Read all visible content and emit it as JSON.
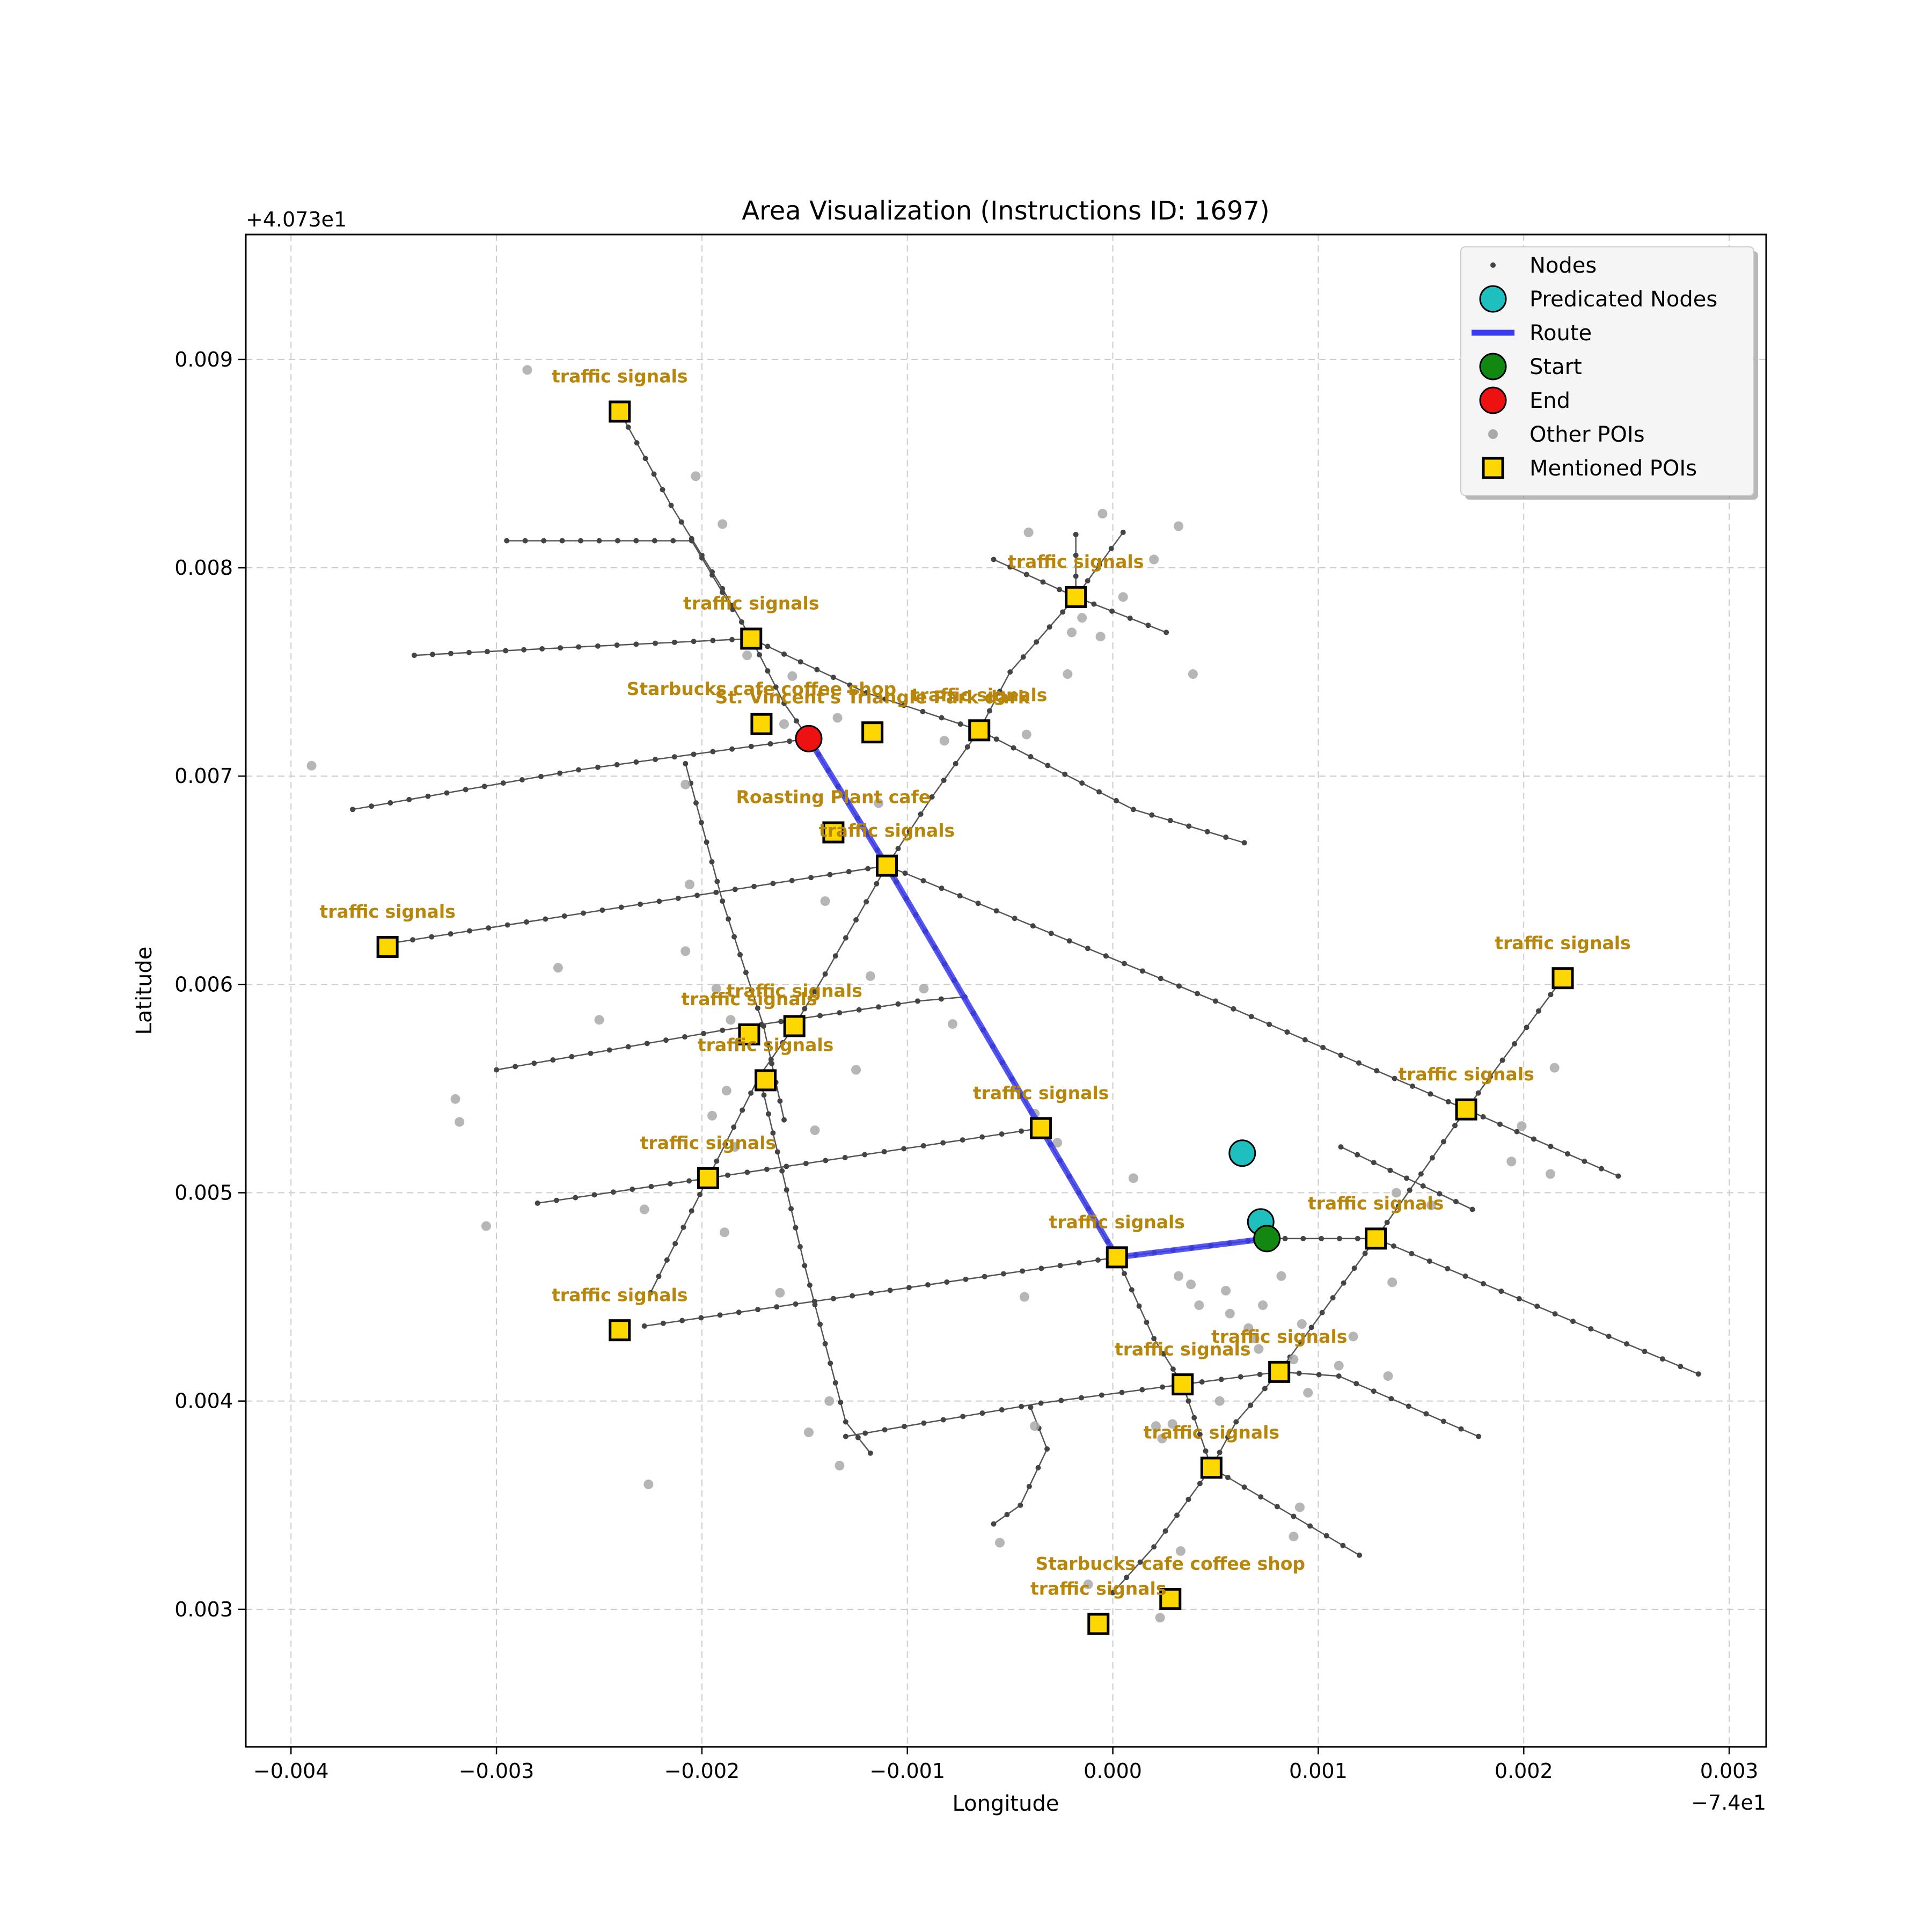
{
  "chart_data": {
    "type": "map",
    "title": "Area Visualization (Instructions ID: 1697)",
    "xlabel": "Longitude",
    "ylabel": "Latitude",
    "x_offset_label": "−7.4e1",
    "y_offset_label": "+4.073e1",
    "xlim": [
      -0.00422,
      0.00318
    ],
    "ylim": [
      0.00234,
      0.0096
    ],
    "x_ticks": [
      {
        "v": -0.004,
        "label": "−0.004"
      },
      {
        "v": -0.003,
        "label": "−0.003"
      },
      {
        "v": -0.002,
        "label": "−0.002"
      },
      {
        "v": -0.001,
        "label": "−0.001"
      },
      {
        "v": 0.0,
        "label": "0.000"
      },
      {
        "v": 0.001,
        "label": "0.001"
      },
      {
        "v": 0.002,
        "label": "0.002"
      },
      {
        "v": 0.003,
        "label": "0.003"
      }
    ],
    "y_ticks": [
      {
        "v": 0.003,
        "label": "0.003"
      },
      {
        "v": 0.004,
        "label": "0.004"
      },
      {
        "v": 0.005,
        "label": "0.005"
      },
      {
        "v": 0.006,
        "label": "0.006"
      },
      {
        "v": 0.007,
        "label": "0.007"
      },
      {
        "v": 0.008,
        "label": "0.008"
      },
      {
        "v": 0.009,
        "label": "0.009"
      }
    ],
    "grid": true,
    "legend": {
      "position": "top-right",
      "entries": [
        {
          "label": "Nodes",
          "kind": "node"
        },
        {
          "label": "Predicated Nodes",
          "kind": "pred"
        },
        {
          "label": "Route",
          "kind": "route"
        },
        {
          "label": "Start",
          "kind": "start"
        },
        {
          "label": "End",
          "kind": "end"
        },
        {
          "label": "Other POIs",
          "kind": "other"
        },
        {
          "label": "Mentioned POIs",
          "kind": "poi"
        }
      ]
    },
    "colors": {
      "route": "#3a3aee",
      "node": "#444444",
      "edge": "#555555",
      "predicated": "#1fbfbf",
      "start": "#118811",
      "end": "#ee1111",
      "other_poi": "#a9a9a9",
      "poi_fill": "#ffd700",
      "poi_label": "#b8860b",
      "grid": "#cccccc"
    },
    "streets": [
      [
        [
          -0.0024,
          0.00875
        ],
        [
          -0.00215,
          0.0083
        ],
        [
          -0.0019,
          0.0079
        ],
        [
          -0.00176,
          0.00766
        ],
        [
          -0.0016,
          0.00735
        ],
        [
          -0.00148,
          0.00718
        ]
      ],
      [
        [
          -0.0034,
          0.00758
        ],
        [
          -0.0026,
          0.00762
        ],
        [
          -0.00176,
          0.00766
        ]
      ],
      [
        [
          -0.00176,
          0.00766
        ],
        [
          -0.0012,
          0.0074
        ],
        [
          -0.00065,
          0.00722
        ],
        [
          0.0001,
          0.00684
        ],
        [
          0.00064,
          0.00668
        ]
      ],
      [
        [
          -0.00295,
          0.00813
        ],
        [
          -0.00205,
          0.00813
        ],
        [
          -0.00185,
          0.0078
        ]
      ],
      [
        [
          -0.0037,
          0.00684
        ],
        [
          -0.0026,
          0.00703
        ],
        [
          -0.00148,
          0.00718
        ]
      ],
      [
        [
          -0.00208,
          0.00706
        ],
        [
          -0.0019,
          0.0064
        ],
        [
          -0.0017,
          0.0058
        ],
        [
          -0.0016,
          0.00535
        ]
      ],
      [
        [
          -0.00148,
          0.00718
        ],
        [
          -0.0011,
          0.00657
        ],
        [
          -0.00035,
          0.00531
        ],
        [
          2e-05,
          0.00469
        ]
      ],
      [
        [
          -0.0035,
          0.0062
        ],
        [
          -0.0011,
          0.00657
        ]
      ],
      [
        [
          -0.0011,
          0.00657
        ],
        [
          0.0005,
          0.00592
        ],
        [
          0.00172,
          0.0054
        ],
        [
          0.00246,
          0.00508
        ]
      ],
      [
        [
          -0.00018,
          0.00816
        ],
        [
          -0.00018,
          0.00786
        ],
        [
          -0.0005,
          0.0075
        ],
        [
          -0.00065,
          0.00722
        ],
        [
          -0.00088,
          0.0069
        ],
        [
          -0.0011,
          0.00657
        ],
        [
          -0.0014,
          0.00605
        ],
        [
          -0.00155,
          0.0058
        ],
        [
          -0.00172,
          0.00556
        ]
      ],
      [
        [
          -0.00058,
          0.00804
        ],
        [
          -0.00018,
          0.00786
        ],
        [
          0.00026,
          0.00769
        ]
      ],
      [
        [
          -0.00018,
          0.00786
        ],
        [
          5e-05,
          0.00817
        ]
      ],
      [
        [
          -0.003,
          0.00559
        ],
        [
          -0.0019,
          0.00578
        ],
        [
          -0.00095,
          0.00592
        ],
        [
          -0.00072,
          0.00594
        ]
      ],
      [
        [
          -0.0028,
          0.00495
        ],
        [
          -0.00197,
          0.00507
        ],
        [
          -0.00035,
          0.00531
        ]
      ],
      [
        [
          -0.00172,
          0.00556
        ],
        [
          -0.00197,
          0.00507
        ],
        [
          -0.00225,
          0.00452
        ]
      ],
      [
        [
          -0.00172,
          0.00556
        ],
        [
          -0.0015,
          0.00465
        ],
        [
          -0.0013,
          0.0039
        ],
        [
          -0.00118,
          0.00375
        ]
      ],
      [
        [
          -0.00228,
          0.00436
        ],
        [
          2e-05,
          0.00469
        ],
        [
          0.00075,
          0.00478
        ],
        [
          0.00128,
          0.00478
        ]
      ],
      [
        [
          2e-05,
          0.00469
        ],
        [
          0.0002,
          0.0043
        ],
        [
          0.00034,
          0.00408
        ],
        [
          0.00048,
          0.00368
        ]
      ],
      [
        [
          -0.0013,
          0.00383
        ],
        [
          -0.00035,
          0.00399
        ],
        [
          0.00034,
          0.00408
        ],
        [
          0.00081,
          0.00414
        ],
        [
          0.0011,
          0.00412
        ],
        [
          0.00178,
          0.00383
        ]
      ],
      [
        [
          0.00128,
          0.00478
        ],
        [
          0.00081,
          0.00414
        ],
        [
          0.0006,
          0.0039
        ],
        [
          0.00048,
          0.00368
        ],
        [
          0.0002,
          0.0033
        ],
        [
          0.0,
          0.00308
        ]
      ],
      [
        [
          0.00048,
          0.00368
        ],
        [
          0.0012,
          0.00326
        ]
      ],
      [
        [
          0.00128,
          0.00478
        ],
        [
          0.00285,
          0.00413
        ]
      ],
      [
        [
          0.00219,
          0.00603
        ],
        [
          0.00172,
          0.0054
        ],
        [
          0.00128,
          0.00478
        ]
      ],
      [
        [
          0.00111,
          0.00522
        ],
        [
          0.00175,
          0.00492
        ]
      ],
      [
        [
          -0.0004,
          0.00397
        ],
        [
          -0.00032,
          0.00377
        ],
        [
          -0.00045,
          0.0035
        ],
        [
          -0.00058,
          0.00341
        ]
      ]
    ],
    "route": [
      [
        -0.00148,
        0.00718
      ],
      [
        -0.0011,
        0.00657
      ],
      [
        -0.00035,
        0.00531
      ],
      [
        2e-05,
        0.00469
      ],
      [
        0.00075,
        0.00478
      ]
    ],
    "predicated_nodes": [
      [
        0.00063,
        0.00519
      ],
      [
        0.00072,
        0.00486
      ]
    ],
    "start": [
      0.00075,
      0.00478
    ],
    "end": [
      -0.00148,
      0.00718
    ],
    "other_pois": [
      [
        -0.0039,
        0.00705
      ],
      [
        -0.00285,
        0.00895
      ],
      [
        -0.00203,
        0.00844
      ],
      [
        -0.0019,
        0.00821
      ],
      [
        -0.00178,
        0.00758
      ],
      [
        -0.00156,
        0.00748
      ],
      [
        -0.0016,
        0.00725
      ],
      [
        -0.00134,
        0.00728
      ],
      [
        -0.00114,
        0.00687
      ],
      [
        -0.00082,
        0.00717
      ],
      [
        -0.00042,
        0.0072
      ],
      [
        -0.00022,
        0.00749
      ],
      [
        -0.0002,
        0.00769
      ],
      [
        -0.00015,
        0.00776
      ],
      [
        -6e-05,
        0.00767
      ],
      [
        5e-05,
        0.00786
      ],
      [
        0.0002,
        0.00804
      ],
      [
        0.00032,
        0.0082
      ],
      [
        0.00039,
        0.00749
      ],
      [
        -0.00041,
        0.00817
      ],
      [
        -5e-05,
        0.00826
      ],
      [
        -0.00208,
        0.00696
      ],
      [
        -0.00206,
        0.00648
      ],
      [
        -0.00208,
        0.00616
      ],
      [
        -0.0027,
        0.00608
      ],
      [
        -0.0025,
        0.00583
      ],
      [
        -0.00193,
        0.00598
      ],
      [
        -0.00186,
        0.00583
      ],
      [
        -0.0014,
        0.0064
      ],
      [
        -0.00118,
        0.00604
      ],
      [
        -0.00092,
        0.00598
      ],
      [
        -0.00125,
        0.00559
      ],
      [
        -0.00188,
        0.00549
      ],
      [
        -0.00195,
        0.00537
      ],
      [
        -0.00145,
        0.0053
      ],
      [
        -0.00038,
        0.00538
      ],
      [
        -0.00027,
        0.00524
      ],
      [
        -0.00078,
        0.00581
      ],
      [
        -0.0032,
        0.00545
      ],
      [
        -0.00318,
        0.00534
      ],
      [
        -0.00305,
        0.00484
      ],
      [
        -0.00228,
        0.00492
      ],
      [
        -0.00189,
        0.00481
      ],
      [
        -0.00184,
        0.00522
      ],
      [
        -0.00162,
        0.00452
      ],
      [
        -0.00138,
        0.004
      ],
      [
        -0.00148,
        0.00385
      ],
      [
        -0.00133,
        0.00369
      ],
      [
        -0.00226,
        0.0036
      ],
      [
        -0.00043,
        0.0045
      ],
      [
        -0.00038,
        0.00388
      ],
      [
        0.0001,
        0.00507
      ],
      [
        0.00032,
        0.0046
      ],
      [
        0.00038,
        0.00456
      ],
      [
        0.00042,
        0.00446
      ],
      [
        0.00055,
        0.00453
      ],
      [
        0.00057,
        0.00442
      ],
      [
        0.00066,
        0.00435
      ],
      [
        0.00069,
        0.0043
      ],
      [
        0.00073,
        0.00446
      ],
      [
        0.00071,
        0.00425
      ],
      [
        0.00082,
        0.0046
      ],
      [
        0.00092,
        0.00437
      ],
      [
        0.0011,
        0.00417
      ],
      [
        0.00117,
        0.00431
      ],
      [
        0.00095,
        0.00404
      ],
      [
        0.00088,
        0.0042
      ],
      [
        0.00134,
        0.00412
      ],
      [
        0.00136,
        0.00457
      ],
      [
        0.00138,
        0.005
      ],
      [
        0.00155,
        0.00494
      ],
      [
        0.00194,
        0.00515
      ],
      [
        0.00199,
        0.00532
      ],
      [
        0.00213,
        0.00509
      ],
      [
        0.00215,
        0.0056
      ],
      [
        0.00021,
        0.00388
      ],
      [
        0.00024,
        0.00382
      ],
      [
        0.00029,
        0.00389
      ],
      [
        0.00091,
        0.00349
      ],
      [
        0.00088,
        0.00335
      ],
      [
        -0.00055,
        0.00332
      ],
      [
        -0.00012,
        0.00312
      ],
      [
        0.00023,
        0.00296
      ],
      [
        0.00033,
        0.00328
      ],
      [
        0.00052,
        0.004
      ]
    ],
    "mentioned_pois": [
      {
        "x": -0.0024,
        "y": 0.00875,
        "label": "traffic signals",
        "dx": 0,
        "dy": 0.00014
      },
      {
        "x": -0.00176,
        "y": 0.00766,
        "label": "traffic signals",
        "dx": 0,
        "dy": 0.00014
      },
      {
        "x": -0.00018,
        "y": 0.00786,
        "label": "traffic signals",
        "dx": 0,
        "dy": 0.00014
      },
      {
        "x": -0.00171,
        "y": 0.00725,
        "label": "Starbucks cafe coffee shop",
        "dx": 0,
        "dy": 0.00014
      },
      {
        "x": -0.00117,
        "y": 0.00721,
        "label": "St. Vincent's Triangle Park dark",
        "dx": 0,
        "dy": 0.00014
      },
      {
        "x": -0.00065,
        "y": 0.00722,
        "label": "traffic signals",
        "dx": 0,
        "dy": 0.00014
      },
      {
        "x": -0.00136,
        "y": 0.00673,
        "label": "Roasting Plant cafe",
        "dx": 0,
        "dy": 0.00014
      },
      {
        "x": -0.0011,
        "y": 0.00657,
        "label": "traffic signals",
        "dx": 0,
        "dy": 0.00014
      },
      {
        "x": -0.00353,
        "y": 0.00618,
        "label": "traffic signals",
        "dx": 0,
        "dy": 0.00014
      },
      {
        "x": 0.00219,
        "y": 0.00603,
        "label": "traffic signals",
        "dx": 0,
        "dy": 0.00014
      },
      {
        "x": -0.00155,
        "y": 0.0058,
        "label": "traffic signals",
        "dx": 0,
        "dy": 0.00014
      },
      {
        "x": -0.00177,
        "y": 0.00576,
        "label": "traffic signals",
        "dx": 0,
        "dy": 0.00014
      },
      {
        "x": -0.00169,
        "y": 0.00554,
        "label": "traffic signals",
        "dx": 0,
        "dy": 0.00014
      },
      {
        "x": 0.00172,
        "y": 0.0054,
        "label": "traffic signals",
        "dx": 0,
        "dy": 0.00014
      },
      {
        "x": -0.00035,
        "y": 0.00531,
        "label": "traffic signals",
        "dx": 0,
        "dy": 0.00014
      },
      {
        "x": -0.00197,
        "y": 0.00507,
        "label": "traffic signals",
        "dx": 0,
        "dy": 0.00014
      },
      {
        "x": 0.00128,
        "y": 0.00478,
        "label": "traffic signals",
        "dx": 0,
        "dy": 0.00014
      },
      {
        "x": 2e-05,
        "y": 0.00469,
        "label": "traffic signals",
        "dx": 0,
        "dy": 0.00014
      },
      {
        "x": -0.0024,
        "y": 0.00434,
        "label": "traffic signals",
        "dx": 0,
        "dy": 0.00014
      },
      {
        "x": 0.00081,
        "y": 0.00414,
        "label": "traffic signals",
        "dx": 0,
        "dy": 0.00014
      },
      {
        "x": 0.00034,
        "y": 0.00408,
        "label": "traffic signals",
        "dx": 0,
        "dy": 0.00014
      },
      {
        "x": 0.00048,
        "y": 0.00368,
        "label": "traffic signals",
        "dx": 0,
        "dy": 0.00014
      },
      {
        "x": 0.00028,
        "y": 0.00305,
        "label": "Starbucks cafe coffee shop",
        "dx": 0,
        "dy": 0.00014
      },
      {
        "x": -7e-05,
        "y": 0.00293,
        "label": "traffic signals",
        "dx": 0,
        "dy": 0.00014
      }
    ]
  }
}
